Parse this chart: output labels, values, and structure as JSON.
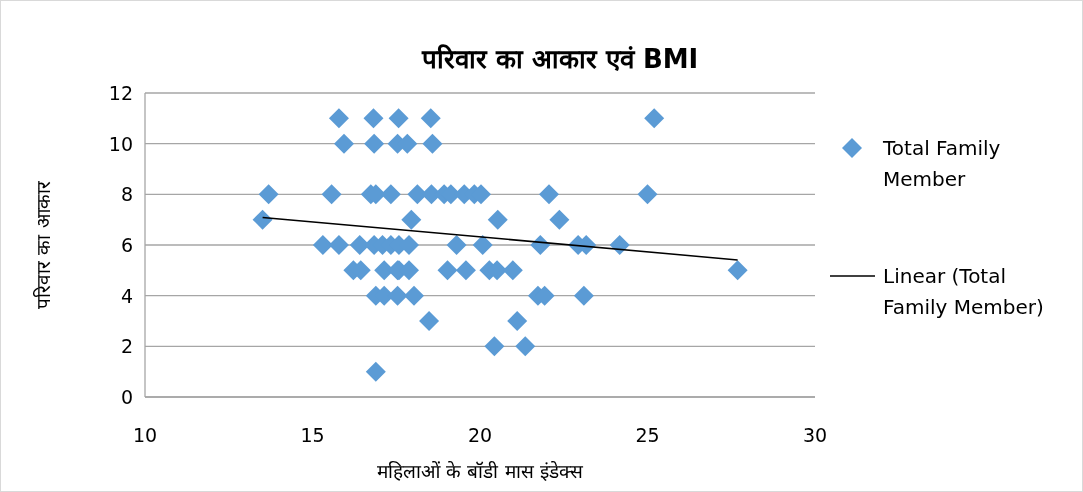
{
  "chart_data": {
    "type": "scatter",
    "title": "परिवार का आकार एवं BMI",
    "xlabel": "महिलाओं के बॉडी मास इंडेक्स",
    "ylabel": "परिवार का आकार",
    "xlim": [
      10,
      30
    ],
    "xticks": [
      10,
      15,
      20,
      25,
      30
    ],
    "ylim": [
      0,
      12
    ],
    "yticks": [
      0,
      2,
      4,
      6,
      8,
      10,
      12
    ],
    "grid": "y",
    "legend": "right",
    "marker": "diamond",
    "series": [
      {
        "name": "Total Family Member",
        "color": "#5b9bd5",
        "x": [
          15.79,
          16.82,
          17.57,
          18.53,
          25.2,
          15.94,
          16.84,
          17.54,
          17.83,
          18.58,
          13.69,
          15.57,
          16.74,
          16.89,
          17.34,
          18.13,
          18.55,
          18.93,
          19.13,
          19.53,
          19.83,
          20.03,
          22.06,
          25.0,
          13.51,
          17.95,
          20.53,
          22.37,
          15.31,
          15.79,
          16.41,
          16.84,
          17.09,
          17.34,
          17.58,
          17.88,
          19.3,
          20.08,
          21.8,
          22.93,
          23.17,
          24.17,
          16.22,
          16.44,
          17.14,
          17.54,
          17.58,
          17.88,
          19.03,
          19.58,
          20.28,
          20.51,
          20.98,
          27.69,
          16.89,
          17.14,
          17.54,
          18.03,
          21.73,
          21.93,
          23.1,
          18.48,
          21.11,
          20.43,
          21.35,
          16.89
        ],
        "values": [
          11,
          11,
          11,
          11,
          11,
          10,
          10,
          10,
          10,
          10,
          8,
          8,
          8,
          8,
          8,
          8,
          8,
          8,
          8,
          8,
          8,
          8,
          8,
          8,
          7,
          7,
          7,
          7,
          6,
          6,
          6,
          6,
          6,
          6,
          6,
          6,
          6,
          6,
          6,
          6,
          6,
          6,
          5,
          5,
          5,
          5,
          5,
          5,
          5,
          5,
          5,
          5,
          5,
          5,
          4,
          4,
          4,
          4,
          4,
          4,
          4,
          3,
          3,
          2,
          2,
          1
        ]
      },
      {
        "name": "Linear (Total Family Member)",
        "type": "line",
        "color": "#000000",
        "marker": "none",
        "line_style": "solid",
        "x": [
          13.51,
          27.69
        ],
        "values": [
          7.09,
          5.41
        ]
      }
    ]
  }
}
